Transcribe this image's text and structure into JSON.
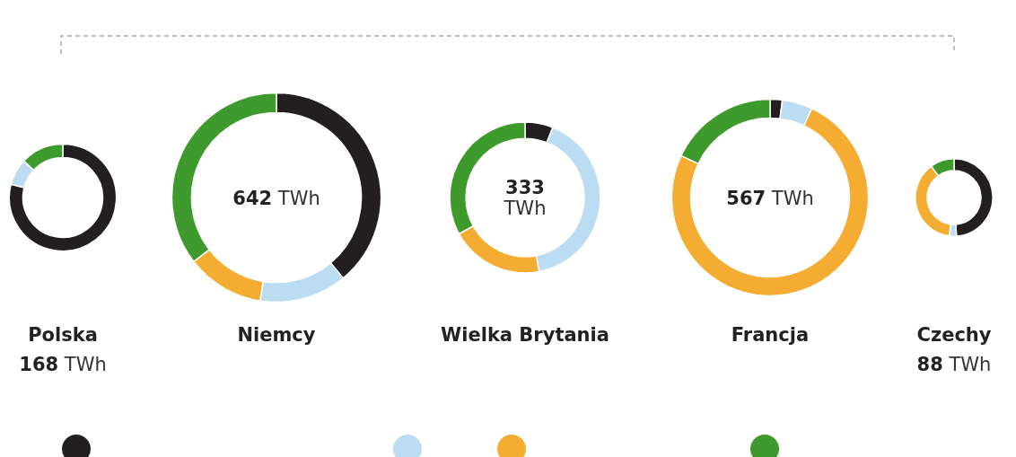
{
  "chart_data": [
    {
      "type": "donut",
      "title": "Polska",
      "subtitle": "168 TWh",
      "categories": [
        null,
        null,
        null,
        null
      ],
      "values": [
        79,
        8,
        0,
        13
      ],
      "colors": [
        "#231f20",
        "#bcdcf2",
        "#f5ac32",
        "#3f9a2d"
      ]
    },
    {
      "type": "donut",
      "title": "Niemcy",
      "subtitle": "642 TWh",
      "categories": [
        null,
        null,
        null,
        null
      ],
      "values": [
        39,
        13.5,
        12,
        35.5
      ],
      "colors": [
        "#231f20",
        "#bcdcf2",
        "#f5ac32",
        "#3f9a2d"
      ]
    },
    {
      "type": "donut",
      "title": "Wielka Brytania",
      "subtitle": "333 TWh",
      "categories": [
        null,
        null,
        null,
        null
      ],
      "values": [
        6,
        41,
        20,
        33
      ],
      "colors": [
        "#231f20",
        "#bcdcf2",
        "#f5ac32",
        "#3f9a2d"
      ]
    },
    {
      "type": "donut",
      "title": "Francja",
      "subtitle": "567 TWh",
      "categories": [
        null,
        null,
        null,
        null
      ],
      "values": [
        2,
        5,
        75,
        18
      ],
      "colors": [
        "#231f20",
        "#bcdcf2",
        "#f5ac32",
        "#3f9a2d"
      ]
    },
    {
      "type": "donut",
      "title": "Czechy",
      "subtitle": "88 TWh",
      "categories": [
        null,
        null,
        null,
        null
      ],
      "values": [
        49,
        3,
        38,
        10
      ],
      "colors": [
        "#231f20",
        "#bcdcf2",
        "#f5ac32",
        "#3f9a2d"
      ]
    }
  ]
}
